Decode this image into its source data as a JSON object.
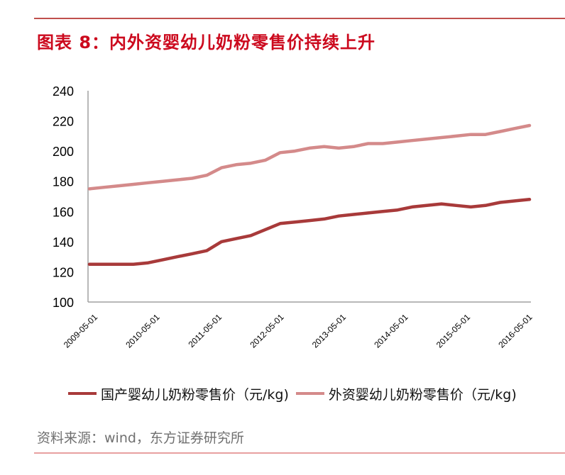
{
  "header": {
    "title": "图表 8：内外资婴幼儿奶粉零售价持续上升"
  },
  "legend": {
    "items": [
      {
        "label": "国产婴幼儿奶粉零售价（元/kg)",
        "color": "#a83a3a"
      },
      {
        "label": "外资婴幼儿奶粉零售价（元/kg)",
        "color": "#d48a8a"
      }
    ]
  },
  "footer": {
    "source": "资料来源：wind，东方证券研究所"
  },
  "colors": {
    "title": "#cc0a1e",
    "top_rule": "#c0504d",
    "bottom_rule": "#e8a0a0",
    "domestic": "#a83a3a",
    "foreign": "#d48a8a",
    "axis": "#a0a0a0"
  },
  "chart_data": {
    "type": "line",
    "title": "图表 8：内外资婴幼儿奶粉零售价持续上升",
    "xlabel": "",
    "ylabel": "",
    "ylim": [
      100,
      240
    ],
    "yticks": [
      100,
      120,
      140,
      160,
      180,
      200,
      220,
      240
    ],
    "grid": false,
    "legend_position": "bottom",
    "categories": [
      "2009-05-01",
      "2010-05-01",
      "2011-05-01",
      "2012-05-01",
      "2013-05-01",
      "2014-05-01",
      "2015-05-01",
      "2016-05-01"
    ],
    "x": [
      "2009-05",
      "2009-08",
      "2009-11",
      "2010-02",
      "2010-05",
      "2010-08",
      "2010-11",
      "2011-02",
      "2011-05",
      "2011-08",
      "2011-11",
      "2012-02",
      "2012-05",
      "2012-08",
      "2012-11",
      "2013-02",
      "2013-05",
      "2013-08",
      "2013-11",
      "2014-02",
      "2014-05",
      "2014-08",
      "2014-11",
      "2015-02",
      "2015-05",
      "2015-08",
      "2015-11",
      "2016-02",
      "2016-05",
      "2016-08",
      "2016-11"
    ],
    "series": [
      {
        "name": "国产婴幼儿奶粉零售价（元/kg)",
        "color": "#a83a3a",
        "values": [
          125,
          125,
          125,
          125,
          126,
          128,
          130,
          132,
          134,
          140,
          142,
          144,
          148,
          152,
          153,
          154,
          155,
          157,
          158,
          159,
          160,
          161,
          163,
          164,
          165,
          164,
          163,
          164,
          166,
          167,
          168
        ]
      },
      {
        "name": "外资婴幼儿奶粉零售价（元/kg)",
        "color": "#d48a8a",
        "values": [
          175,
          176,
          177,
          178,
          179,
          180,
          181,
          182,
          184,
          189,
          191,
          192,
          194,
          199,
          200,
          202,
          203,
          202,
          203,
          205,
          205,
          206,
          207,
          208,
          209,
          210,
          211,
          211,
          213,
          215,
          217
        ]
      }
    ]
  }
}
